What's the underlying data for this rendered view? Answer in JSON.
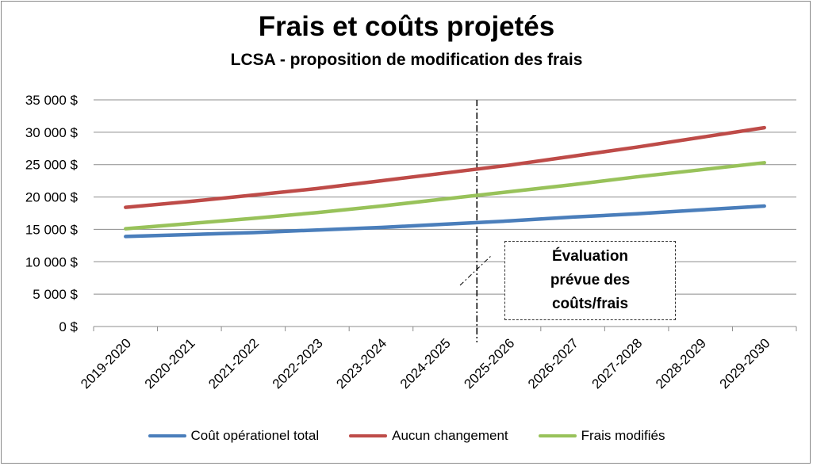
{
  "chart_data": {
    "type": "line",
    "title": "Frais et coûts projetés",
    "subtitle": "LCSA - proposition de modification des frais",
    "categories": [
      "2019-2020",
      "2020-2021",
      "2021-2022",
      "2022-2023",
      "2023-2024",
      "2024-2025",
      "2025-2026",
      "2026-2027",
      "2027-2028",
      "2028-2029",
      "2029-2030"
    ],
    "yticks": [
      "0 $",
      "5 000 $",
      "10 000 $",
      "15 000 $",
      "20 000 $",
      "25 000 $",
      "30 000 $",
      "35 000 $"
    ],
    "ylim": [
      0,
      35000
    ],
    "grid": true,
    "legend_position": "bottom",
    "series": [
      {
        "name": "Coût opérationel total",
        "color": "#4a7ebb",
        "values": [
          13900,
          14200,
          14500,
          14900,
          15300,
          15800,
          16300,
          16900,
          17400,
          18000,
          18600
        ]
      },
      {
        "name": "Aucun changement",
        "color": "#be4b48",
        "values": [
          18400,
          19300,
          20300,
          21300,
          22500,
          23700,
          24900,
          26300,
          27700,
          29200,
          30700
        ]
      },
      {
        "name": "Frais modifiés",
        "color": "#98c25a",
        "values": [
          15100,
          15900,
          16700,
          17600,
          18600,
          19700,
          20800,
          21900,
          23100,
          24200,
          25300
        ]
      }
    ],
    "annotation": {
      "text": "Évaluation\nprévue des\ncoûts/frais",
      "marker_category": "2024-2025"
    }
  }
}
